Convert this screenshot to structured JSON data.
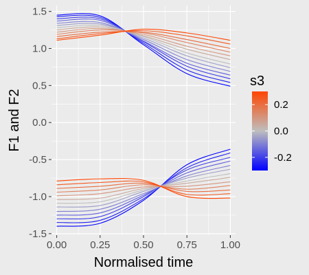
{
  "chart_data": {
    "type": "line",
    "xlabel": "Normalised time",
    "ylabel": "F1 and F2",
    "xlim": [
      -0.03,
      1.03
    ],
    "ylim": [
      -1.52,
      1.58
    ],
    "x_ticks": [
      0.0,
      0.25,
      0.5,
      0.75,
      1.0
    ],
    "x_tick_labels": [
      "0.00",
      "0.25",
      "0.50",
      "0.75",
      "1.00"
    ],
    "y_ticks": [
      -1.5,
      -1.0,
      -0.5,
      0.0,
      0.5,
      1.0,
      1.5
    ],
    "y_tick_labels": [
      "-1.5",
      "-1.0",
      "-0.5",
      "0.0",
      "0.5",
      "1.0",
      "1.5"
    ],
    "grid": true,
    "background": "#ebebeb",
    "grid_color": "#ffffff",
    "legend": {
      "title": "s3",
      "position": "right",
      "low_color": "#0000ff",
      "mid_color": "#bebebe",
      "high_color": "#ff4500",
      "range": [
        -0.3,
        0.3
      ],
      "ticks": [
        0.2,
        0.0,
        -0.2
      ],
      "tick_labels": [
        "0.2",
        "0.0",
        "-0.2"
      ]
    },
    "series_groups": [
      {
        "group": "F1",
        "s3_values": [
          -0.3,
          -0.25,
          -0.2,
          -0.15,
          -0.1,
          -0.05,
          0.0,
          0.05,
          0.1,
          0.15,
          0.2,
          0.25,
          0.3
        ],
        "x": [
          0.0,
          0.25,
          0.5,
          0.75,
          1.0
        ],
        "curves": [
          {
            "s3": -0.3,
            "y": [
              1.45,
              1.44,
              1.05,
              0.66,
              0.49
            ]
          },
          {
            "s3": -0.25,
            "y": [
              1.43,
              1.42,
              1.07,
              0.71,
              0.54
            ]
          },
          {
            "s3": -0.2,
            "y": [
              1.4,
              1.4,
              1.09,
              0.76,
              0.59
            ]
          },
          {
            "s3": -0.15,
            "y": [
              1.37,
              1.38,
              1.1,
              0.8,
              0.64
            ]
          },
          {
            "s3": -0.1,
            "y": [
              1.34,
              1.35,
              1.12,
              0.85,
              0.69
            ]
          },
          {
            "s3": -0.05,
            "y": [
              1.31,
              1.33,
              1.14,
              0.9,
              0.74
            ]
          },
          {
            "s3": 0.0,
            "y": [
              1.28,
              1.31,
              1.16,
              0.94,
              0.79
            ]
          },
          {
            "s3": 0.05,
            "y": [
              1.25,
              1.29,
              1.17,
              0.99,
              0.85
            ]
          },
          {
            "s3": 0.1,
            "y": [
              1.22,
              1.27,
              1.19,
              1.03,
              0.9
            ]
          },
          {
            "s3": 0.15,
            "y": [
              1.19,
              1.25,
              1.21,
              1.08,
              0.95
            ]
          },
          {
            "s3": 0.2,
            "y": [
              1.16,
              1.22,
              1.22,
              1.12,
              1.0
            ]
          },
          {
            "s3": 0.25,
            "y": [
              1.13,
              1.2,
              1.24,
              1.17,
              1.06
            ]
          },
          {
            "s3": 0.3,
            "y": [
              1.11,
              1.18,
              1.26,
              1.21,
              1.11
            ]
          }
        ]
      },
      {
        "group": "F2",
        "s3_values": [
          -0.3,
          -0.25,
          -0.2,
          -0.15,
          -0.1,
          -0.05,
          0.0,
          0.05,
          0.1,
          0.15,
          0.2,
          0.25,
          0.3
        ],
        "x": [
          0.0,
          0.25,
          0.5,
          0.75,
          1.0
        ],
        "curves": [
          {
            "s3": -0.3,
            "y": [
              -1.4,
              -1.36,
              -1.05,
              -0.57,
              -0.36
            ]
          },
          {
            "s3": -0.25,
            "y": [
              -1.35,
              -1.32,
              -1.03,
              -0.61,
              -0.41
            ]
          },
          {
            "s3": -0.2,
            "y": [
              -1.3,
              -1.27,
              -1.0,
              -0.64,
              -0.47
            ]
          },
          {
            "s3": -0.15,
            "y": [
              -1.25,
              -1.22,
              -0.98,
              -0.68,
              -0.52
            ]
          },
          {
            "s3": -0.1,
            "y": [
              -1.2,
              -1.17,
              -0.96,
              -0.72,
              -0.58
            ]
          },
          {
            "s3": -0.05,
            "y": [
              -1.14,
              -1.12,
              -0.93,
              -0.75,
              -0.63
            ]
          },
          {
            "s3": 0.0,
            "y": [
              -1.09,
              -1.07,
              -0.91,
              -0.79,
              -0.69
            ]
          },
          {
            "s3": 0.05,
            "y": [
              -1.04,
              -1.02,
              -0.89,
              -0.82,
              -0.74
            ]
          },
          {
            "s3": 0.1,
            "y": [
              -0.99,
              -0.96,
              -0.87,
              -0.86,
              -0.8
            ]
          },
          {
            "s3": 0.15,
            "y": [
              -0.94,
              -0.91,
              -0.84,
              -0.9,
              -0.85
            ]
          },
          {
            "s3": 0.2,
            "y": [
              -0.89,
              -0.86,
              -0.82,
              -0.93,
              -0.91
            ]
          },
          {
            "s3": 0.25,
            "y": [
              -0.84,
              -0.81,
              -0.8,
              -0.97,
              -0.96
            ]
          },
          {
            "s3": 0.3,
            "y": [
              -0.79,
              -0.76,
              -0.78,
              -1.0,
              -1.02
            ]
          }
        ]
      }
    ]
  }
}
